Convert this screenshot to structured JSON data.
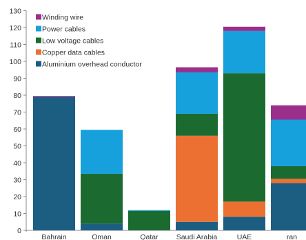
{
  "chart_data": {
    "type": "bar",
    "stacked": true,
    "categories": [
      "Bahrain",
      "Oman",
      "Qatar",
      "Saudi Arabia",
      "UAE",
      "Iran"
    ],
    "category_labels": [
      "Bahrain",
      "Oman",
      "Qatar",
      "Saudi Arabia",
      "UAE",
      "ran"
    ],
    "series": [
      {
        "name": "Aluminium overhead conductor",
        "color": "#1b5e82",
        "values": [
          79,
          4,
          0,
          5,
          8,
          28
        ]
      },
      {
        "name": "Copper data cables",
        "color": "#ec7032",
        "values": [
          0,
          0,
          0,
          51,
          9,
          2.5
        ]
      },
      {
        "name": "Low voltage cables",
        "color": "#1b6b30",
        "values": [
          0,
          29.5,
          11.5,
          13,
          76,
          7.5
        ]
      },
      {
        "name": "Power cables",
        "color": "#16a0dc",
        "values": [
          0,
          26,
          0.5,
          24.5,
          25,
          27.5
        ]
      },
      {
        "name": "Winding wire",
        "color": "#9b2f8c",
        "values": [
          0.5,
          0,
          0,
          3,
          2.5,
          8.5
        ]
      }
    ],
    "ylim": [
      0,
      130
    ],
    "yticks": [
      0,
      10,
      20,
      30,
      40,
      50,
      60,
      70,
      80,
      90,
      100,
      110,
      120,
      130
    ],
    "title": "",
    "xlabel": "",
    "ylabel": "",
    "legend": "top-left",
    "grid": false
  }
}
